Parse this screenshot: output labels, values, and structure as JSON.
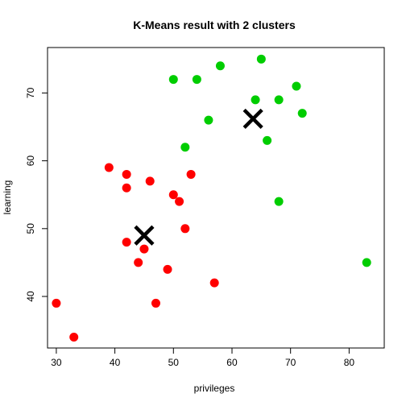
{
  "chart_data": {
    "type": "scatter",
    "title": "K-Means result with 2 clusters",
    "xlabel": "privileges",
    "ylabel": "learning",
    "xlim": [
      28.5,
      86.0
    ],
    "ylim": [
      32.4,
      76.7
    ],
    "xticks": [
      30,
      40,
      50,
      60,
      70,
      80
    ],
    "yticks": [
      40,
      50,
      60,
      70
    ],
    "grid": false,
    "legend": "none",
    "series": [
      {
        "color": "#ff0000",
        "marker": "filled-circle",
        "points": [
          [
            30,
            39
          ],
          [
            33,
            34
          ],
          [
            39,
            59
          ],
          [
            42,
            58
          ],
          [
            42,
            56
          ],
          [
            42,
            48
          ],
          [
            44,
            45
          ],
          [
            45,
            47
          ],
          [
            46,
            57
          ],
          [
            47,
            39
          ],
          [
            49,
            44
          ],
          [
            50,
            55
          ],
          [
            51,
            54
          ],
          [
            52,
            50
          ],
          [
            53,
            58
          ],
          [
            57,
            42
          ]
        ]
      },
      {
        "color": "#00cd00",
        "marker": "filled-circle",
        "points": [
          [
            50,
            72
          ],
          [
            52,
            62
          ],
          [
            54,
            72
          ],
          [
            56,
            66
          ],
          [
            58,
            74
          ],
          [
            64,
            69
          ],
          [
            65,
            75
          ],
          [
            66,
            63
          ],
          [
            68,
            69
          ],
          [
            68,
            54
          ],
          [
            71,
            71
          ],
          [
            72,
            67
          ],
          [
            83,
            45
          ]
        ]
      }
    ],
    "centers": {
      "marker": "x",
      "color": "#000000",
      "points": [
        [
          45,
          49
        ],
        [
          63.6,
          66.2
        ]
      ]
    }
  }
}
